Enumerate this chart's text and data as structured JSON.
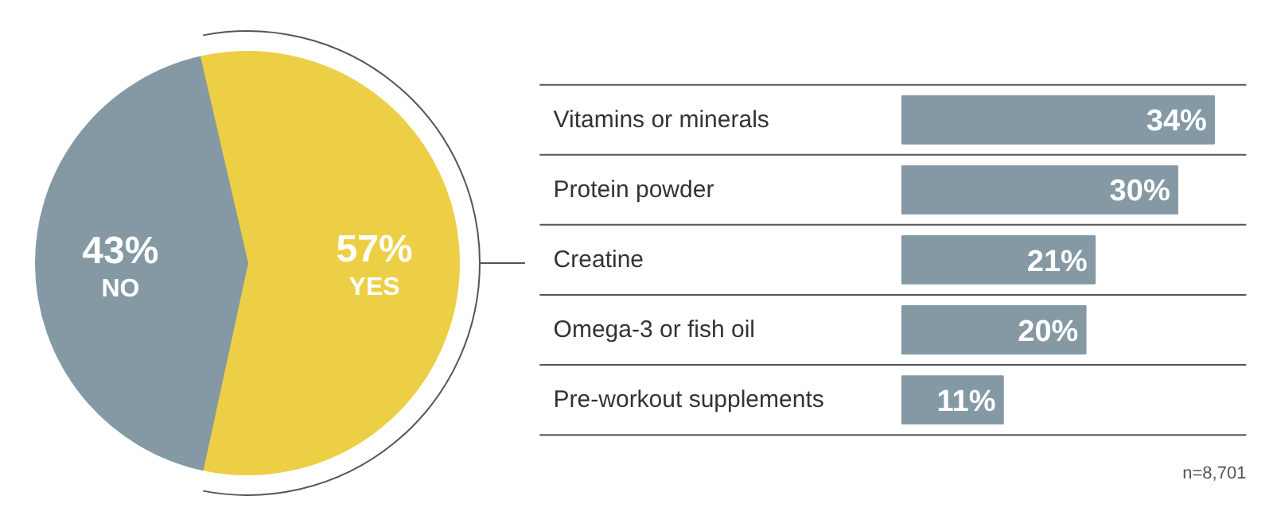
{
  "chart_data": [
    {
      "type": "pie",
      "categories": [
        "NO",
        "YES"
      ],
      "values": [
        43,
        57
      ],
      "colors": [
        "#8499a3",
        "#edcf45"
      ],
      "value_labels": [
        "43%",
        "57%"
      ]
    },
    {
      "type": "bar",
      "orientation": "horizontal",
      "categories": [
        "Vitamins or minerals",
        "Protein powder",
        "Creatine",
        "Omega-3 or fish oil",
        "Pre-workout supplements"
      ],
      "values": [
        34,
        30,
        21,
        20,
        11
      ],
      "color": "#8499a3",
      "value_labels": [
        "34%",
        "30%",
        "21%",
        "20%",
        "11%"
      ],
      "grid": "y",
      "annotations": [
        "n=8,701"
      ]
    }
  ]
}
